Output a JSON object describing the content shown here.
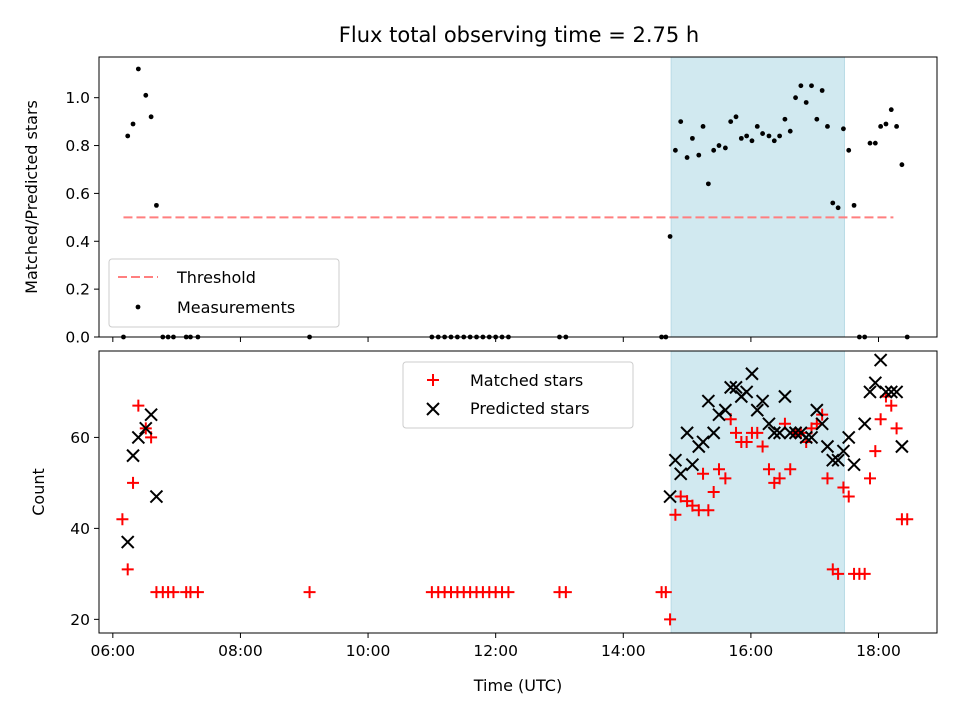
{
  "figure": {
    "title": "Flux total observing time = 2.75 h"
  },
  "chart_data": [
    {
      "type": "scatter",
      "panel": "top",
      "ylabel": "Matched/Predicted stars",
      "xlabel": "",
      "xlim": [
        "05:47",
        "18:55"
      ],
      "ylim": [
        0,
        1.17
      ],
      "yticks": [
        0.0,
        0.2,
        0.4,
        0.6,
        0.8,
        1.0
      ],
      "ytick_labels": [
        "0.0",
        "0.2",
        "0.4",
        "0.6",
        "0.8",
        "1.0"
      ],
      "highlight_span": [
        "14:45",
        "17:28"
      ],
      "highlight_color": "#d1e9f0",
      "legend_position": "lower-left",
      "threshold": {
        "name": "Threshold",
        "value": 0.5,
        "x_range": [
          "06:10",
          "18:14"
        ],
        "color": "#ff7f7f",
        "style": "dashed"
      },
      "series": [
        {
          "name": "Measurements",
          "marker": "dot",
          "color": "#000000",
          "points": [
            [
              "06:10",
              0.0
            ],
            [
              "06:14",
              0.84
            ],
            [
              "06:19",
              0.89
            ],
            [
              "06:24",
              1.12
            ],
            [
              "06:31",
              1.01
            ],
            [
              "06:36",
              0.92
            ],
            [
              "06:41",
              0.55
            ],
            [
              "06:47",
              0.0
            ],
            [
              "06:52",
              0.0
            ],
            [
              "06:57",
              0.0
            ],
            [
              "07:09",
              0.0
            ],
            [
              "07:13",
              0.0
            ],
            [
              "07:20",
              0.0
            ],
            [
              "09:05",
              0.0
            ],
            [
              "11:00",
              0.0
            ],
            [
              "11:06",
              0.0
            ],
            [
              "11:12",
              0.0
            ],
            [
              "11:18",
              0.0
            ],
            [
              "11:24",
              0.0
            ],
            [
              "11:30",
              0.0
            ],
            [
              "11:36",
              0.0
            ],
            [
              "11:42",
              0.0
            ],
            [
              "11:48",
              0.0
            ],
            [
              "11:54",
              0.0
            ],
            [
              "12:00",
              0.0
            ],
            [
              "12:06",
              0.0
            ],
            [
              "12:12",
              0.0
            ],
            [
              "13:00",
              0.0
            ],
            [
              "13:06",
              0.0
            ],
            [
              "14:36",
              0.0
            ],
            [
              "14:40",
              0.0
            ],
            [
              "14:44",
              0.42
            ],
            [
              "14:49",
              0.78
            ],
            [
              "14:54",
              0.9
            ],
            [
              "15:00",
              0.75
            ],
            [
              "15:05",
              0.83
            ],
            [
              "15:11",
              0.76
            ],
            [
              "15:15",
              0.88
            ],
            [
              "15:20",
              0.64
            ],
            [
              "15:25",
              0.78
            ],
            [
              "15:30",
              0.8
            ],
            [
              "15:36",
              0.79
            ],
            [
              "15:41",
              0.9
            ],
            [
              "15:46",
              0.92
            ],
            [
              "15:51",
              0.83
            ],
            [
              "15:56",
              0.84
            ],
            [
              "16:01",
              0.82
            ],
            [
              "16:06",
              0.88
            ],
            [
              "16:11",
              0.85
            ],
            [
              "16:17",
              0.84
            ],
            [
              "16:22",
              0.82
            ],
            [
              "16:27",
              0.84
            ],
            [
              "16:32",
              0.91
            ],
            [
              "16:37",
              0.86
            ],
            [
              "16:42",
              1.0
            ],
            [
              "16:47",
              1.05
            ],
            [
              "16:52",
              0.98
            ],
            [
              "16:57",
              1.05
            ],
            [
              "17:02",
              0.91
            ],
            [
              "17:07",
              1.03
            ],
            [
              "17:12",
              0.88
            ],
            [
              "17:17",
              0.56
            ],
            [
              "17:22",
              0.54
            ],
            [
              "17:27",
              0.87
            ],
            [
              "17:32",
              0.78
            ],
            [
              "17:37",
              0.55
            ],
            [
              "17:42",
              0.0
            ],
            [
              "17:47",
              0.0
            ],
            [
              "17:52",
              0.81
            ],
            [
              "17:57",
              0.81
            ],
            [
              "18:02",
              0.88
            ],
            [
              "18:07",
              0.89
            ],
            [
              "18:12",
              0.95
            ],
            [
              "18:17",
              0.88
            ],
            [
              "18:22",
              0.72
            ],
            [
              "18:27",
              0.0
            ]
          ]
        }
      ]
    },
    {
      "type": "scatter",
      "panel": "bottom",
      "ylabel": "Count",
      "xlabel": "Time (UTC)",
      "xlim": [
        "05:47",
        "18:55"
      ],
      "ylim": [
        17,
        79
      ],
      "yticks": [
        20,
        40,
        60
      ],
      "ytick_labels": [
        "20",
        "40",
        "60"
      ],
      "xticks": [
        "06:00",
        "08:00",
        "10:00",
        "12:00",
        "14:00",
        "16:00",
        "18:00"
      ],
      "xtick_labels": [
        "06:00",
        "08:00",
        "10:00",
        "12:00",
        "14:00",
        "16:00",
        "18:00"
      ],
      "highlight_span": [
        "14:45",
        "17:28"
      ],
      "highlight_color": "#d1e9f0",
      "legend_position": "upper-center",
      "series": [
        {
          "name": "Matched stars",
          "marker": "plus",
          "color": "#ff0000",
          "points": [
            [
              "06:09",
              42
            ],
            [
              "06:14",
              31
            ],
            [
              "06:19",
              50
            ],
            [
              "06:24",
              67
            ],
            [
              "06:31",
              62
            ],
            [
              "06:36",
              60
            ],
            [
              "06:41",
              26
            ],
            [
              "06:47",
              26
            ],
            [
              "06:52",
              26
            ],
            [
              "06:57",
              26
            ],
            [
              "07:09",
              26
            ],
            [
              "07:13",
              26
            ],
            [
              "07:20",
              26
            ],
            [
              "09:05",
              26
            ],
            [
              "11:00",
              26
            ],
            [
              "11:06",
              26
            ],
            [
              "11:12",
              26
            ],
            [
              "11:18",
              26
            ],
            [
              "11:24",
              26
            ],
            [
              "11:30",
              26
            ],
            [
              "11:36",
              26
            ],
            [
              "11:42",
              26
            ],
            [
              "11:48",
              26
            ],
            [
              "11:54",
              26
            ],
            [
              "12:00",
              26
            ],
            [
              "12:06",
              26
            ],
            [
              "12:12",
              26
            ],
            [
              "13:00",
              26
            ],
            [
              "13:06",
              26
            ],
            [
              "14:36",
              26
            ],
            [
              "14:40",
              26
            ],
            [
              "14:44",
              20
            ],
            [
              "14:49",
              43
            ],
            [
              "14:54",
              47
            ],
            [
              "15:00",
              46
            ],
            [
              "15:05",
              45
            ],
            [
              "15:11",
              44
            ],
            [
              "15:15",
              52
            ],
            [
              "15:20",
              44
            ],
            [
              "15:25",
              48
            ],
            [
              "15:30",
              53
            ],
            [
              "15:36",
              51
            ],
            [
              "15:41",
              64
            ],
            [
              "15:46",
              61
            ],
            [
              "15:51",
              59
            ],
            [
              "15:56",
              59
            ],
            [
              "16:01",
              61
            ],
            [
              "16:06",
              61
            ],
            [
              "16:11",
              58
            ],
            [
              "16:17",
              53
            ],
            [
              "16:22",
              50
            ],
            [
              "16:27",
              51
            ],
            [
              "16:32",
              63
            ],
            [
              "16:37",
              53
            ],
            [
              "16:42",
              61
            ],
            [
              "16:47",
              61
            ],
            [
              "16:52",
              59
            ],
            [
              "16:57",
              62
            ],
            [
              "17:02",
              63
            ],
            [
              "17:07",
              65
            ],
            [
              "17:12",
              51
            ],
            [
              "17:17",
              31
            ],
            [
              "17:22",
              30
            ],
            [
              "17:27",
              49
            ],
            [
              "17:32",
              47
            ],
            [
              "17:37",
              30
            ],
            [
              "17:42",
              30
            ],
            [
              "17:47",
              30
            ],
            [
              "17:52",
              51
            ],
            [
              "17:57",
              57
            ],
            [
              "18:02",
              64
            ],
            [
              "18:07",
              69
            ],
            [
              "18:12",
              67
            ],
            [
              "18:17",
              62
            ],
            [
              "18:22",
              42
            ],
            [
              "18:27",
              42
            ]
          ]
        },
        {
          "name": "Predicted stars",
          "marker": "x",
          "color": "#000000",
          "points": [
            [
              "06:14",
              37
            ],
            [
              "06:19",
              56
            ],
            [
              "06:24",
              60
            ],
            [
              "06:31",
              62
            ],
            [
              "06:36",
              65
            ],
            [
              "06:41",
              47
            ],
            [
              "14:44",
              47
            ],
            [
              "14:49",
              55
            ],
            [
              "14:54",
              52
            ],
            [
              "15:00",
              61
            ],
            [
              "15:05",
              54
            ],
            [
              "15:11",
              58
            ],
            [
              "15:15",
              59
            ],
            [
              "15:20",
              68
            ],
            [
              "15:25",
              61
            ],
            [
              "15:30",
              65
            ],
            [
              "15:36",
              66
            ],
            [
              "15:41",
              71
            ],
            [
              "15:46",
              71
            ],
            [
              "15:51",
              69
            ],
            [
              "15:56",
              70
            ],
            [
              "16:01",
              74
            ],
            [
              "16:06",
              66
            ],
            [
              "16:11",
              68
            ],
            [
              "16:17",
              63
            ],
            [
              "16:22",
              61
            ],
            [
              "16:27",
              61
            ],
            [
              "16:32",
              69
            ],
            [
              "16:37",
              61
            ],
            [
              "16:42",
              61
            ],
            [
              "16:47",
              61
            ],
            [
              "16:52",
              60
            ],
            [
              "16:57",
              60
            ],
            [
              "17:02",
              66
            ],
            [
              "17:07",
              63
            ],
            [
              "17:12",
              58
            ],
            [
              "17:17",
              55
            ],
            [
              "17:22",
              55
            ],
            [
              "17:27",
              57
            ],
            [
              "17:32",
              60
            ],
            [
              "17:37",
              54
            ],
            [
              "17:47",
              63
            ],
            [
              "17:52",
              70
            ],
            [
              "17:57",
              72
            ],
            [
              "18:02",
              77
            ],
            [
              "18:07",
              70
            ],
            [
              "18:12",
              70
            ],
            [
              "18:17",
              70
            ],
            [
              "18:22",
              58
            ]
          ]
        }
      ]
    }
  ]
}
